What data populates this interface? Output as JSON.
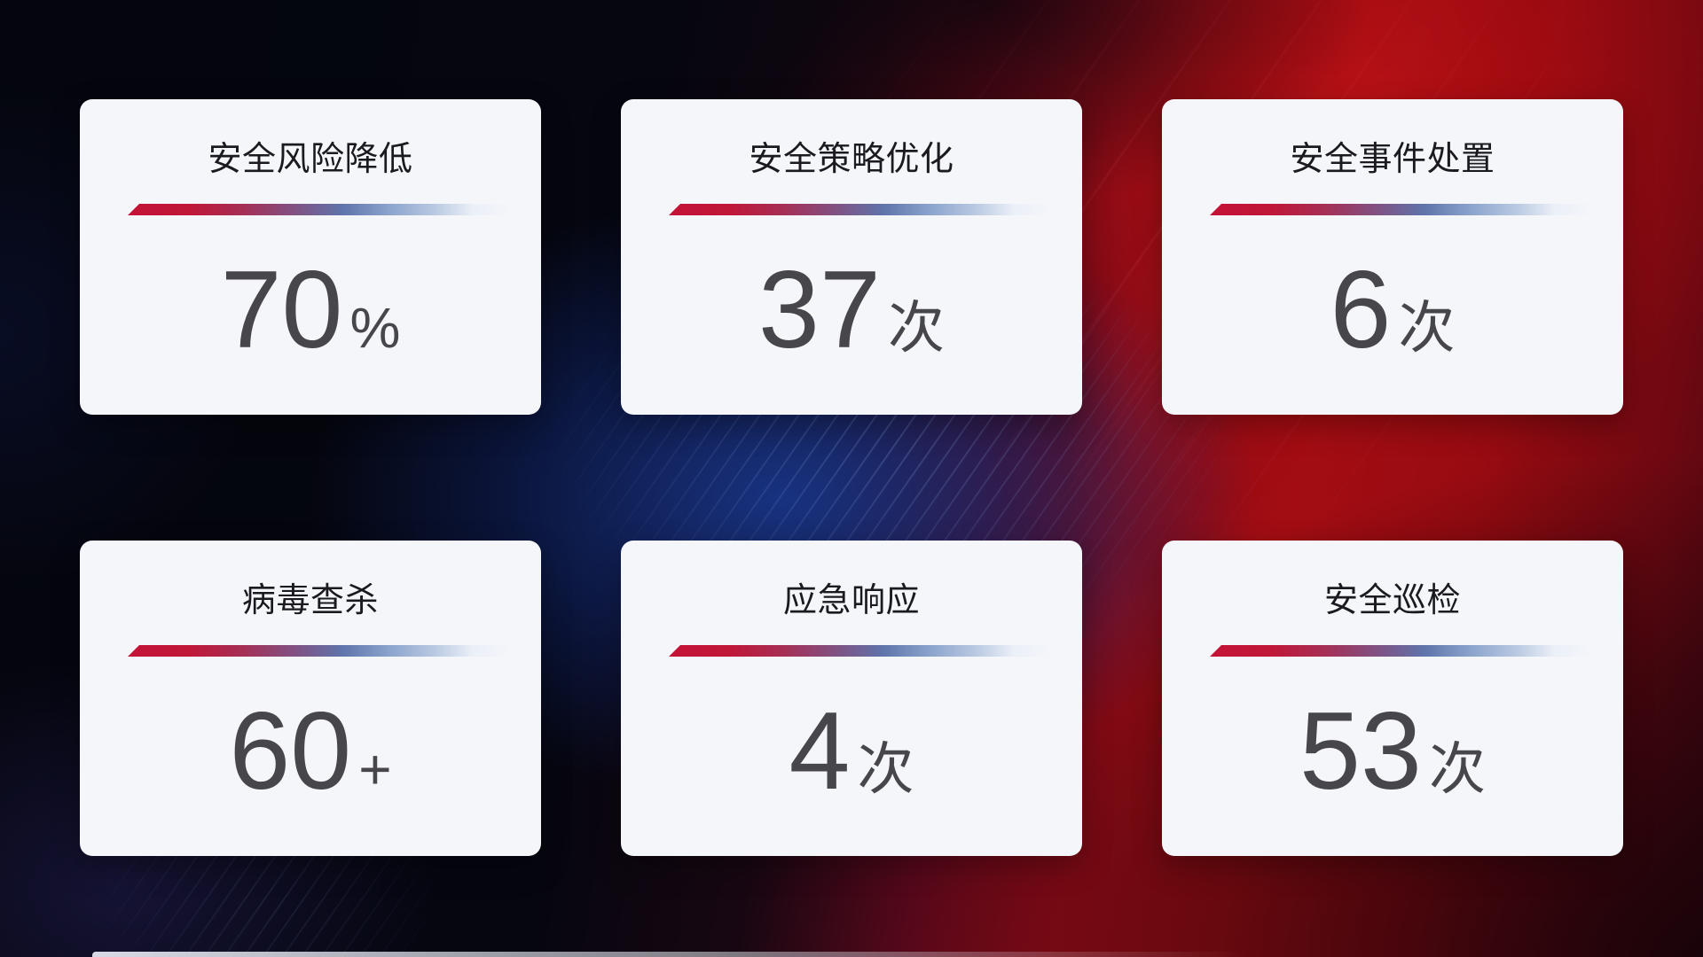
{
  "cards": [
    {
      "title": "安全风险降低",
      "value": "70",
      "unit": "%"
    },
    {
      "title": "安全策略优化",
      "value": "37",
      "unit": "次"
    },
    {
      "title": "安全事件处置",
      "value": "6",
      "unit": "次"
    },
    {
      "title": "病毒查杀",
      "value": "60",
      "unit": "+"
    },
    {
      "title": "应急响应",
      "value": "4",
      "unit": "次"
    },
    {
      "title": "安全巡检",
      "value": "53",
      "unit": "次"
    }
  ],
  "theme": {
    "accent_red": "#c41337",
    "accent_light_blue": "#8aa3cc",
    "card_background": "#f4f6fa",
    "title_color": "#1a1a1f",
    "value_color": "#47474b",
    "background_navy": "#06070f",
    "background_red": "#a30d12",
    "background_blue_glow": "#16327e"
  }
}
